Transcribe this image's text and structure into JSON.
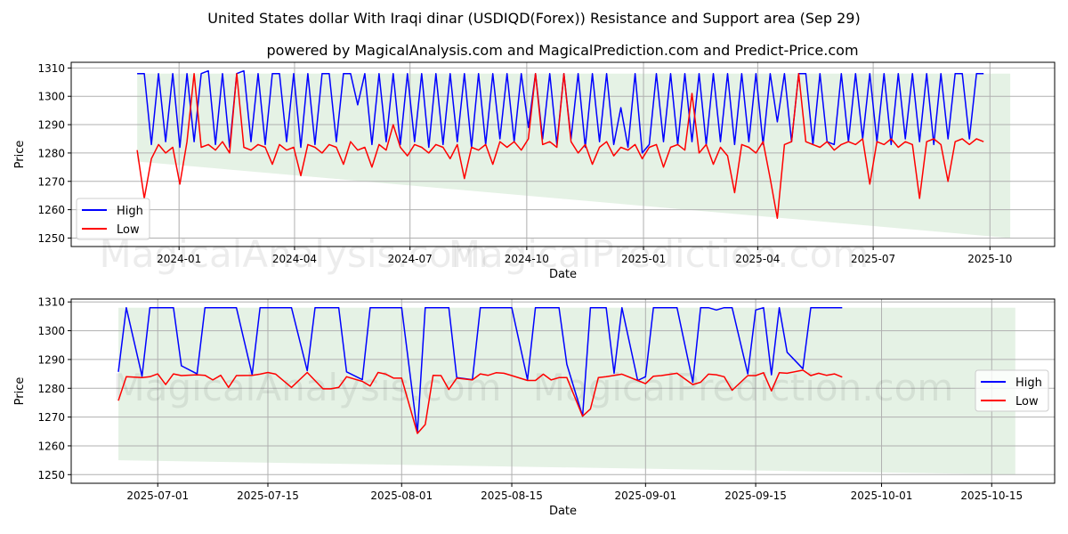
{
  "title": "United States dollar With Iraqi dinar (USDIQD(Forex)) Resistance and Support area (Sep 29)",
  "subtitle": "powered by MagicalAnalysis.com and MagicalPrediction.com and Predict-Price.com",
  "watermarks": [
    "MagicalAnalysis.com",
    "MagicalPrediction.com"
  ],
  "colors": {
    "high": "#0000ff",
    "low": "#ff0000",
    "band": "rgba(0,128,0,0.1)"
  },
  "chart_data": [
    {
      "type": "line",
      "title": "",
      "xlabel": "Date",
      "ylabel": "Price",
      "ylim": [
        1247,
        1312
      ],
      "xlim": [
        "2023-10-08",
        "2025-11-21"
      ],
      "yticks": [
        1250,
        1260,
        1270,
        1280,
        1290,
        1300,
        1310
      ],
      "xticks": [
        {
          "date": "2024-01-01",
          "label": "2024-01"
        },
        {
          "date": "2024-04-01",
          "label": "2024-04"
        },
        {
          "date": "2024-07-01",
          "label": "2024-07"
        },
        {
          "date": "2024-10-01",
          "label": "2024-10"
        },
        {
          "date": "2025-01-01",
          "label": "2025-01"
        },
        {
          "date": "2025-04-01",
          "label": "2025-04"
        },
        {
          "date": "2025-07-01",
          "label": "2025-07"
        },
        {
          "date": "2025-10-01",
          "label": "2025-10"
        }
      ],
      "grid": true,
      "legend": {
        "placement": "lower-left",
        "entries": [
          "High",
          "Low"
        ]
      },
      "band": {
        "start": "2023-11-29",
        "end": "2025-10-17",
        "upper": [
          1308,
          1308
        ],
        "lower": [
          1277,
          1250
        ]
      },
      "series_start": "2023-11-29",
      "series_end": "2025-09-26",
      "series": [
        {
          "name": "High",
          "values": [
            1308,
            1308,
            1283,
            1308,
            1284,
            1308,
            1282,
            1308,
            1284,
            1308,
            1309,
            1283,
            1308,
            1282,
            1308,
            1309,
            1284,
            1308,
            1283,
            1308,
            1308,
            1284,
            1308,
            1282,
            1308,
            1283,
            1308,
            1308,
            1284,
            1308,
            1308,
            1297,
            1308,
            1283,
            1308,
            1284,
            1308,
            1283,
            1308,
            1284,
            1308,
            1282,
            1308,
            1283,
            1308,
            1284,
            1308,
            1282,
            1308,
            1283,
            1308,
            1285,
            1308,
            1284,
            1308,
            1289,
            1308,
            1285,
            1308,
            1283,
            1308,
            1285,
            1308,
            1282,
            1308,
            1284,
            1308,
            1283,
            1296,
            1282,
            1308,
            1280,
            1283,
            1308,
            1284,
            1308,
            1283,
            1308,
            1284,
            1308,
            1283,
            1308,
            1284,
            1308,
            1283,
            1308,
            1284,
            1308,
            1283,
            1308,
            1291,
            1308,
            1284,
            1308,
            1308,
            1283,
            1308,
            1284,
            1283,
            1308,
            1284,
            1308,
            1285,
            1308,
            1284,
            1308,
            1283,
            1308,
            1285,
            1308,
            1284,
            1308,
            1283,
            1308,
            1285,
            1308,
            1308,
            1285,
            1308,
            1308
          ]
        },
        {
          "name": "Low",
          "values": [
            1281,
            1264,
            1278,
            1283,
            1280,
            1282,
            1269,
            1284,
            1308,
            1282,
            1283,
            1281,
            1284,
            1280,
            1308,
            1282,
            1281,
            1283,
            1282,
            1276,
            1283,
            1281,
            1282,
            1272,
            1283,
            1282,
            1280,
            1283,
            1282,
            1276,
            1284,
            1281,
            1282,
            1275,
            1283,
            1281,
            1290,
            1282,
            1279,
            1283,
            1282,
            1280,
            1283,
            1282,
            1278,
            1283,
            1271,
            1282,
            1281,
            1283,
            1276,
            1284,
            1282,
            1284,
            1281,
            1285,
            1308,
            1283,
            1284,
            1282,
            1308,
            1284,
            1280,
            1283,
            1276,
            1282,
            1284,
            1279,
            1282,
            1281,
            1283,
            1278,
            1282,
            1283,
            1275,
            1282,
            1283,
            1281,
            1301,
            1280,
            1283,
            1276,
            1282,
            1279,
            1266,
            1283,
            1282,
            1280,
            1284,
            1271,
            1257,
            1283,
            1284,
            1308,
            1284,
            1283,
            1282,
            1284,
            1281,
            1283,
            1284,
            1283,
            1285,
            1269,
            1284,
            1283,
            1285,
            1282,
            1284,
            1283,
            1264,
            1284,
            1285,
            1283,
            1270,
            1284,
            1285,
            1283,
            1285,
            1284
          ]
        }
      ]
    },
    {
      "type": "line",
      "title": "",
      "xlabel": "Date",
      "ylabel": "Price",
      "ylim": [
        1247,
        1311
      ],
      "xlim": [
        "2025-06-20",
        "2025-10-23"
      ],
      "yticks": [
        1250,
        1260,
        1270,
        1280,
        1290,
        1300,
        1310
      ],
      "xticks": [
        {
          "date": "2025-07-01",
          "label": "2025-07-01"
        },
        {
          "date": "2025-07-15",
          "label": "2025-07-15"
        },
        {
          "date": "2025-08-01",
          "label": "2025-08-01"
        },
        {
          "date": "2025-08-15",
          "label": "2025-08-15"
        },
        {
          "date": "2025-09-01",
          "label": "2025-09-01"
        },
        {
          "date": "2025-09-15",
          "label": "2025-09-15"
        },
        {
          "date": "2025-10-01",
          "label": "2025-10-01"
        },
        {
          "date": "2025-10-15",
          "label": "2025-10-15"
        }
      ],
      "grid": true,
      "legend": {
        "placement": "center-right",
        "entries": [
          "High",
          "Low"
        ]
      },
      "band": {
        "start": "2025-06-26",
        "end": "2025-10-18",
        "upper": [
          1308,
          1308
        ],
        "lower": [
          1255,
          1250
        ]
      },
      "series": [
        {
          "name": "High",
          "points": [
            [
              "2025-06-26",
              1285.7
            ],
            [
              "2025-06-27",
              1308
            ],
            [
              "2025-06-29",
              1284.2
            ],
            [
              "2025-06-30",
              1308
            ],
            [
              "2025-07-03",
              1308
            ],
            [
              "2025-07-04",
              1287.8
            ],
            [
              "2025-07-06",
              1285
            ],
            [
              "2025-07-07",
              1308
            ],
            [
              "2025-07-11",
              1308
            ],
            [
              "2025-07-13",
              1284.7
            ],
            [
              "2025-07-14",
              1308
            ],
            [
              "2025-07-18",
              1308
            ],
            [
              "2025-07-20",
              1286.1
            ],
            [
              "2025-07-21",
              1308
            ],
            [
              "2025-07-24",
              1308
            ],
            [
              "2025-07-25",
              1285.7
            ],
            [
              "2025-07-27",
              1283
            ],
            [
              "2025-07-28",
              1308
            ],
            [
              "2025-08-01",
              1308
            ],
            [
              "2025-08-03",
              1264.6
            ],
            [
              "2025-08-04",
              1308
            ],
            [
              "2025-08-07",
              1308
            ],
            [
              "2025-08-08",
              1283.7
            ],
            [
              "2025-08-10",
              1283
            ],
            [
              "2025-08-11",
              1308
            ],
            [
              "2025-08-15",
              1308
            ],
            [
              "2025-08-17",
              1283
            ],
            [
              "2025-08-18",
              1308
            ],
            [
              "2025-08-21",
              1308
            ],
            [
              "2025-08-22",
              1288.3
            ],
            [
              "2025-08-24",
              1270.3
            ],
            [
              "2025-08-25",
              1308
            ],
            [
              "2025-08-27",
              1308
            ],
            [
              "2025-08-28",
              1285.2
            ],
            [
              "2025-08-29",
              1308
            ],
            [
              "2025-08-31",
              1282.7
            ],
            [
              "2025-09-01",
              1284
            ],
            [
              "2025-09-02",
              1308
            ],
            [
              "2025-09-05",
              1308
            ],
            [
              "2025-09-07",
              1282.1
            ],
            [
              "2025-09-08",
              1308
            ],
            [
              "2025-09-09",
              1308
            ],
            [
              "2025-09-10",
              1307.2
            ],
            [
              "2025-09-11",
              1308
            ],
            [
              "2025-09-12",
              1308
            ],
            [
              "2025-09-14",
              1285
            ],
            [
              "2025-09-15",
              1307.2
            ],
            [
              "2025-09-16",
              1308
            ],
            [
              "2025-09-17",
              1284.7
            ],
            [
              "2025-09-18",
              1308
            ],
            [
              "2025-09-19",
              1292.5
            ],
            [
              "2025-09-21",
              1286.8
            ],
            [
              "2025-09-22",
              1308
            ],
            [
              "2025-09-26",
              1308
            ]
          ]
        },
        {
          "name": "Low",
          "points": [
            [
              "2025-06-26",
              1275.7
            ],
            [
              "2025-06-27",
              1284
            ],
            [
              "2025-06-29",
              1283.7
            ],
            [
              "2025-06-30",
              1284
            ],
            [
              "2025-07-01",
              1285
            ],
            [
              "2025-07-02",
              1281.3
            ],
            [
              "2025-07-03",
              1285
            ],
            [
              "2025-07-04",
              1284.4
            ],
            [
              "2025-07-06",
              1284.7
            ],
            [
              "2025-07-07",
              1284.5
            ],
            [
              "2025-07-08",
              1282.9
            ],
            [
              "2025-07-09",
              1284.5
            ],
            [
              "2025-07-10",
              1280.3
            ],
            [
              "2025-07-11",
              1284.4
            ],
            [
              "2025-07-13",
              1284.5
            ],
            [
              "2025-07-14",
              1284.9
            ],
            [
              "2025-07-15",
              1285.5
            ],
            [
              "2025-07-16",
              1284.9
            ],
            [
              "2025-07-18",
              1280.3
            ],
            [
              "2025-07-20",
              1285.5
            ],
            [
              "2025-07-22",
              1279.8
            ],
            [
              "2025-07-23",
              1279.8
            ],
            [
              "2025-07-24",
              1280.3
            ],
            [
              "2025-07-25",
              1284
            ],
            [
              "2025-07-27",
              1282.4
            ],
            [
              "2025-07-28",
              1280.8
            ],
            [
              "2025-07-29",
              1285.5
            ],
            [
              "2025-07-30",
              1284.9
            ],
            [
              "2025-07-31",
              1283.5
            ],
            [
              "2025-08-01",
              1283.5
            ],
            [
              "2025-08-03",
              1264.3
            ],
            [
              "2025-08-04",
              1267.4
            ],
            [
              "2025-08-05",
              1284.5
            ],
            [
              "2025-08-06",
              1284.4
            ],
            [
              "2025-08-07",
              1279.6
            ],
            [
              "2025-08-08",
              1283.5
            ],
            [
              "2025-08-10",
              1282.9
            ],
            [
              "2025-08-11",
              1285
            ],
            [
              "2025-08-12",
              1284.5
            ],
            [
              "2025-08-13",
              1285.4
            ],
            [
              "2025-08-14",
              1285.2
            ],
            [
              "2025-08-15",
              1284.4
            ],
            [
              "2025-08-17",
              1282.7
            ],
            [
              "2025-08-18",
              1282.7
            ],
            [
              "2025-08-19",
              1284.9
            ],
            [
              "2025-08-20",
              1282.9
            ],
            [
              "2025-08-21",
              1283.7
            ],
            [
              "2025-08-22",
              1283.7
            ],
            [
              "2025-08-24",
              1270.3
            ],
            [
              "2025-08-25",
              1272.8
            ],
            [
              "2025-08-26",
              1283.7
            ],
            [
              "2025-08-27",
              1284
            ],
            [
              "2025-08-29",
              1284.9
            ],
            [
              "2025-08-31",
              1282.7
            ],
            [
              "2025-09-01",
              1281.6
            ],
            [
              "2025-09-02",
              1284.2
            ],
            [
              "2025-09-03",
              1284.4
            ],
            [
              "2025-09-05",
              1285.2
            ],
            [
              "2025-09-07",
              1281.3
            ],
            [
              "2025-09-08",
              1282.1
            ],
            [
              "2025-09-09",
              1284.9
            ],
            [
              "2025-09-10",
              1284.7
            ],
            [
              "2025-09-11",
              1284
            ],
            [
              "2025-09-12",
              1279.3
            ],
            [
              "2025-09-14",
              1284.4
            ],
            [
              "2025-09-15",
              1284.4
            ],
            [
              "2025-09-16",
              1285.4
            ],
            [
              "2025-09-17",
              1279.1
            ],
            [
              "2025-09-18",
              1285.4
            ],
            [
              "2025-09-19",
              1285.2
            ],
            [
              "2025-09-21",
              1286.3
            ],
            [
              "2025-09-22",
              1284.4
            ],
            [
              "2025-09-23",
              1285.2
            ],
            [
              "2025-09-24",
              1284.5
            ],
            [
              "2025-09-25",
              1285
            ],
            [
              "2025-09-26",
              1283.9
            ]
          ]
        }
      ]
    }
  ]
}
